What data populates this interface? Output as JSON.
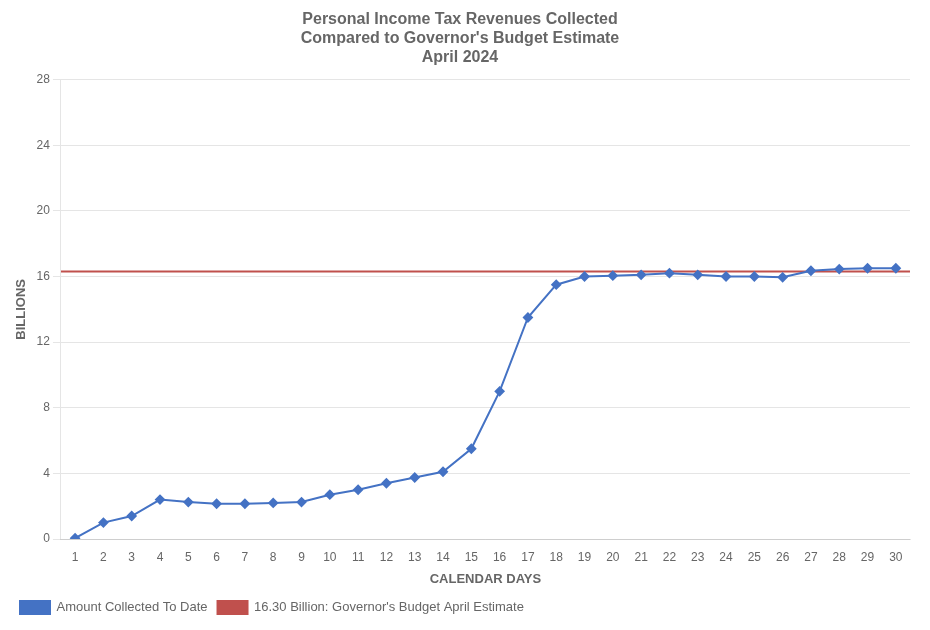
{
  "chart_data": {
    "type": "line",
    "title": "Personal Income Tax Revenues Collected\nCompared to Governor's Budget Estimate\nApril 2024",
    "xlabel": "CALENDAR DAYS",
    "ylabel": "BILLIONS",
    "x": [
      1,
      2,
      3,
      4,
      5,
      6,
      7,
      8,
      9,
      10,
      11,
      12,
      13,
      14,
      15,
      16,
      17,
      18,
      19,
      20,
      21,
      22,
      23,
      24,
      25,
      26,
      27,
      28,
      29,
      30
    ],
    "series": [
      {
        "name": "Amount Collected To Date",
        "color": "#4472C4",
        "marker": "diamond",
        "line_style": "solid",
        "values": [
          0.05,
          1.0,
          1.4,
          2.4,
          2.25,
          2.15,
          2.15,
          2.2,
          2.25,
          2.7,
          3.0,
          3.4,
          3.75,
          4.1,
          5.5,
          9.0,
          13.5,
          15.5,
          16.0,
          16.05,
          16.1,
          16.2,
          16.1,
          16.0,
          16.0,
          15.95,
          16.35,
          16.45,
          16.5,
          16.5
        ]
      },
      {
        "name": "16.30 Billion: Governor's Budget April Estimate",
        "color": "#C0504D",
        "type": "hline",
        "line_style": "solid",
        "value": 16.3
      }
    ],
    "xlim": [
      0.5,
      30.5
    ],
    "xticks": [
      1,
      2,
      3,
      4,
      5,
      6,
      7,
      8,
      9,
      10,
      11,
      12,
      13,
      14,
      15,
      16,
      17,
      18,
      19,
      20,
      21,
      22,
      23,
      24,
      25,
      26,
      27,
      28,
      29,
      30
    ],
    "ylim": [
      0,
      28
    ],
    "yticks": [
      0,
      4,
      8,
      12,
      16,
      20,
      24,
      28
    ],
    "grid": "y",
    "legend": "lower left"
  }
}
